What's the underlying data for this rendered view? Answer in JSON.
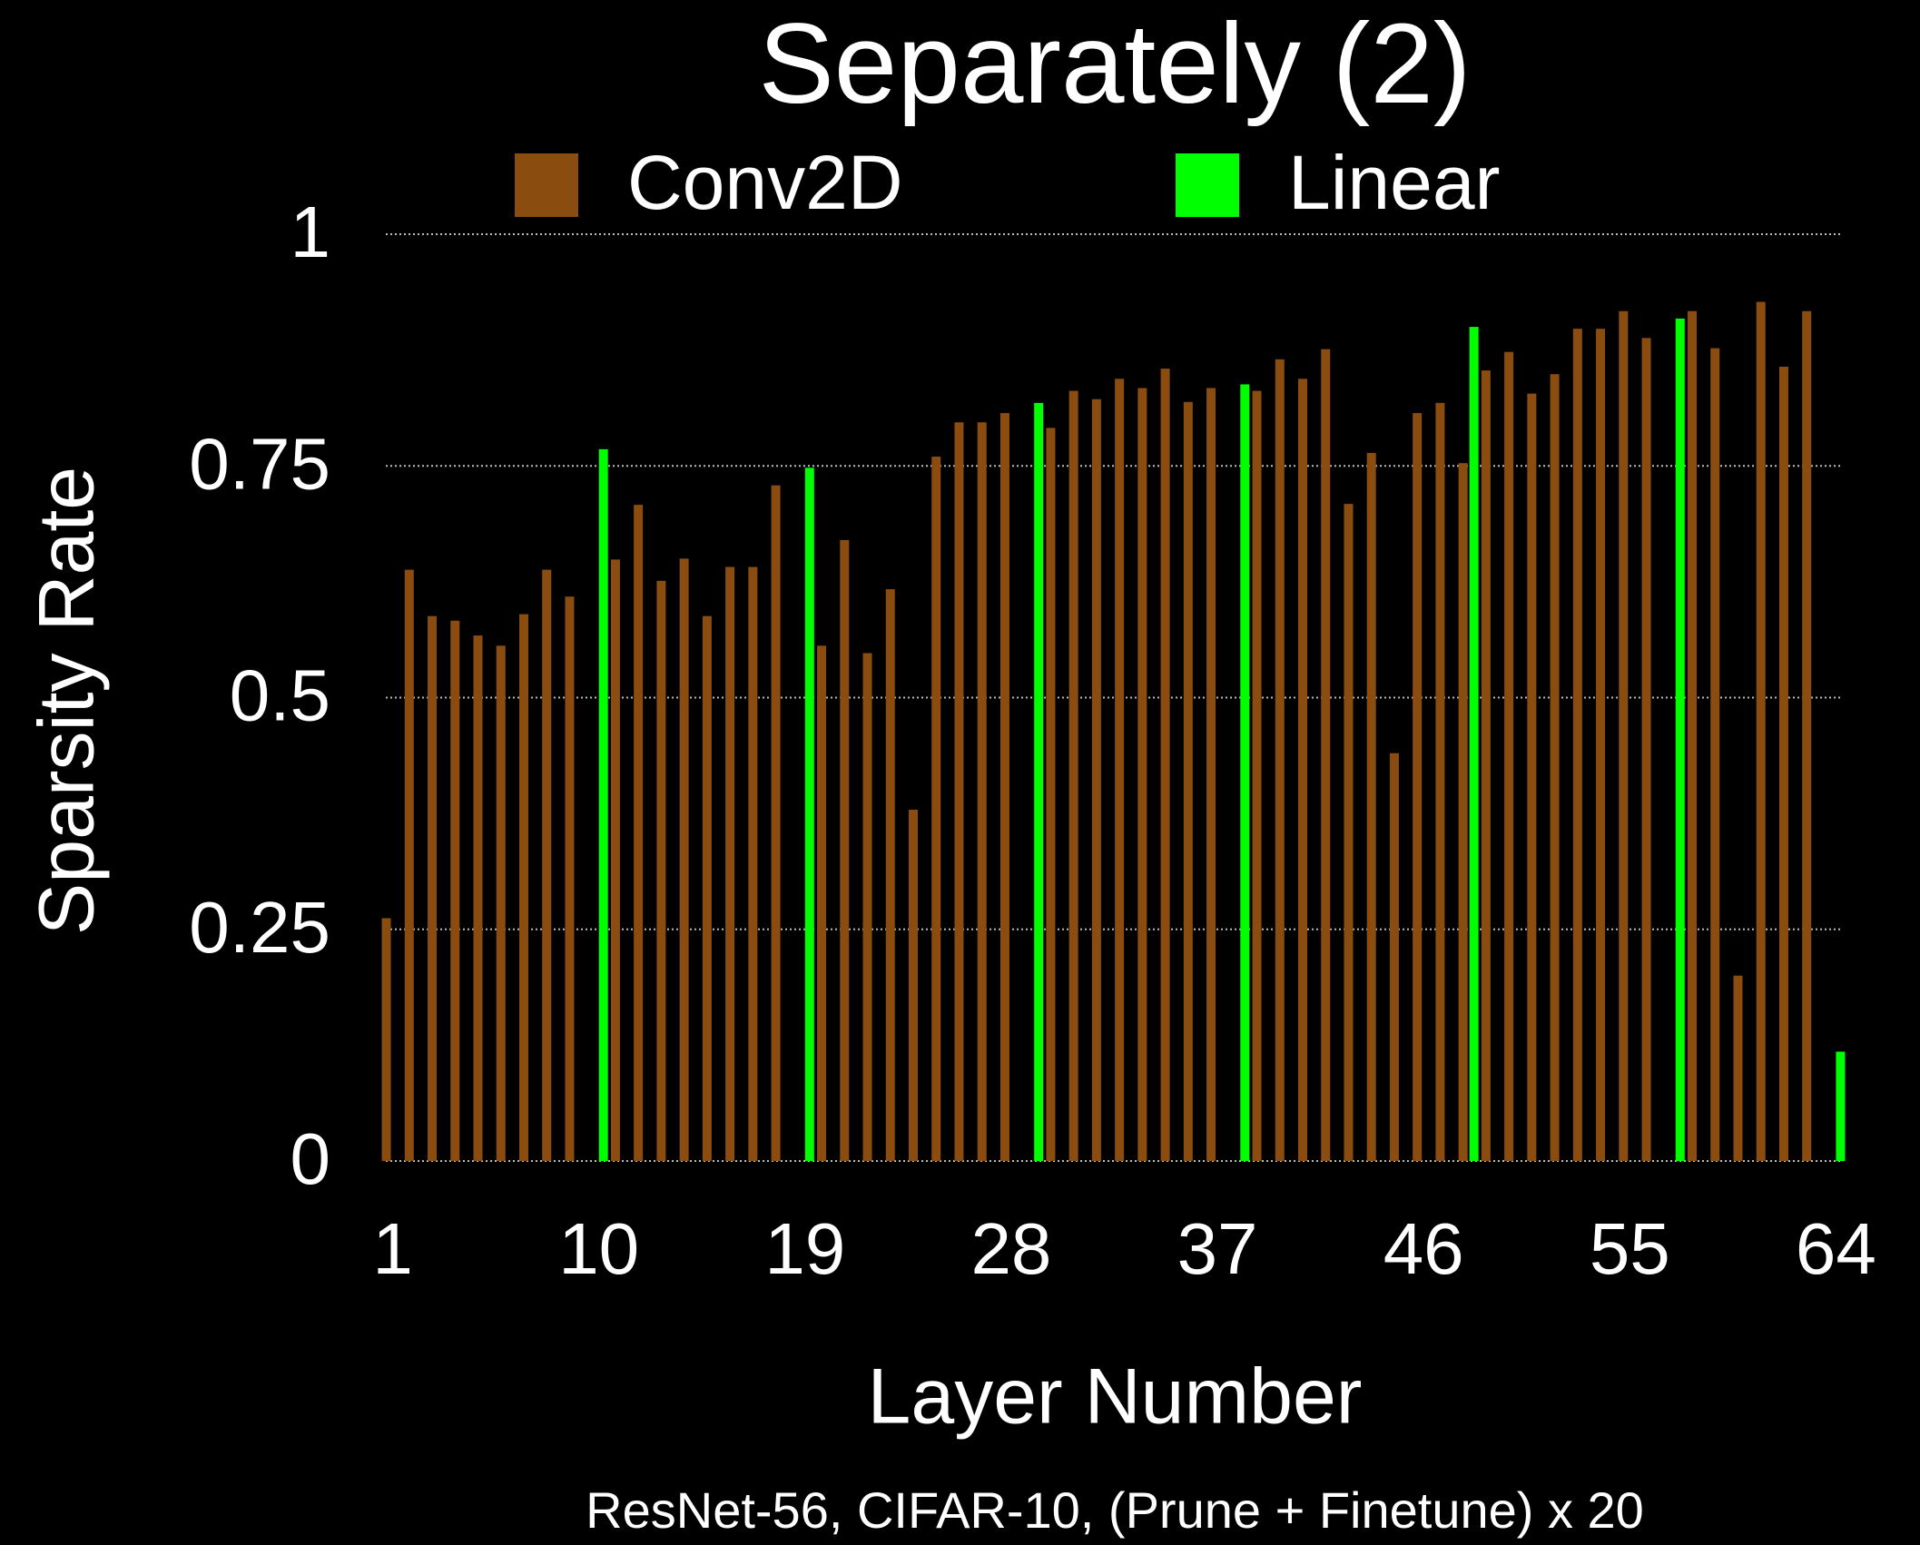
{
  "chart_data": {
    "type": "bar",
    "title": "Separately (2)",
    "x_label": "Layer Number",
    "y_label": "Sparsity Rate",
    "caption": "ResNet-56, CIFAR-10, (Prune + Finetune) x 20",
    "x": [
      1,
      2,
      3,
      4,
      5,
      6,
      7,
      8,
      9,
      10,
      11,
      12,
      13,
      14,
      15,
      16,
      17,
      18,
      19,
      20,
      21,
      22,
      23,
      24,
      25,
      26,
      27,
      28,
      29,
      30,
      31,
      32,
      33,
      34,
      35,
      36,
      37,
      38,
      39,
      40,
      41,
      42,
      43,
      44,
      45,
      46,
      47,
      48,
      49,
      50,
      51,
      52,
      53,
      54,
      55,
      56,
      57,
      58,
      59,
      60,
      61,
      62,
      63,
      64
    ],
    "series": [
      {
        "name": "Conv2D",
        "color": "#8b4c0f",
        "values": [
          0.262,
          0.638,
          0.588,
          0.583,
          0.567,
          0.556,
          0.59,
          0.638,
          0.609,
          null,
          0.649,
          0.708,
          0.626,
          0.65,
          0.588,
          0.641,
          0.641,
          0.729,
          null,
          0.556,
          0.67,
          0.548,
          0.617,
          0.379,
          0.76,
          0.797,
          0.797,
          0.807,
          null,
          0.791,
          0.831,
          0.822,
          0.844,
          0.834,
          0.855,
          0.819,
          0.834,
          null,
          0.831,
          0.865,
          0.844,
          0.876,
          0.709,
          0.764,
          0.44,
          0.807,
          0.818,
          0.753,
          0.853,
          0.873,
          0.828,
          0.849,
          0.898,
          0.898,
          0.917,
          0.888,
          null,
          0.917,
          0.877,
          0.2,
          0.927,
          0.857,
          0.917,
          null
        ]
      },
      {
        "name": "Linear",
        "color": "#00ff00",
        "values": [
          null,
          null,
          null,
          null,
          null,
          null,
          null,
          null,
          null,
          0.768,
          null,
          null,
          null,
          null,
          null,
          null,
          null,
          null,
          0.748,
          null,
          null,
          null,
          null,
          null,
          null,
          null,
          null,
          null,
          0.818,
          null,
          null,
          null,
          null,
          null,
          null,
          null,
          null,
          0.838,
          null,
          null,
          null,
          null,
          null,
          null,
          null,
          null,
          null,
          0.9,
          null,
          null,
          null,
          null,
          null,
          null,
          null,
          null,
          0.909,
          null,
          null,
          null,
          null,
          null,
          null,
          0.118
        ]
      }
    ],
    "xlim": [
      0.7,
      64.3
    ],
    "xticks": [
      1,
      10,
      19,
      28,
      37,
      46,
      55,
      64
    ],
    "ylim": [
      0,
      1
    ],
    "yticks": [
      0,
      0.25,
      0.5,
      0.75,
      1
    ],
    "grid": true
  }
}
